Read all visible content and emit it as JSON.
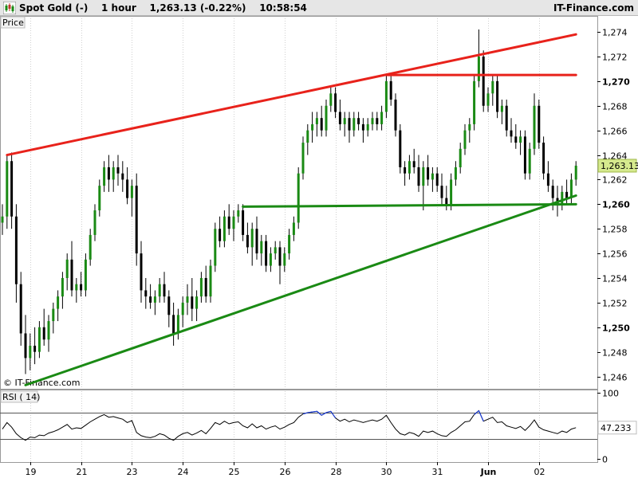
{
  "header": {
    "title": "Spot Gold (-)    1 hour    1,263.13 (-0.22%)    10:58:54",
    "brand": "IT-Finance.com",
    "logo_icon": "candlestick-logo-icon"
  },
  "price_panel": {
    "label": "Price",
    "watermark": "© IT-Finance.com",
    "current_price_label": "1,263.13",
    "y_ticks": [
      {
        "label": "1,274",
        "value": 1274,
        "bold": false
      },
      {
        "label": "1,272",
        "value": 1272,
        "bold": false
      },
      {
        "label": "1,270",
        "value": 1270,
        "bold": true
      },
      {
        "label": "1,268",
        "value": 1268,
        "bold": false
      },
      {
        "label": "1,266",
        "value": 1266,
        "bold": false
      },
      {
        "label": "1,264",
        "value": 1264,
        "bold": false
      },
      {
        "label": "1,262",
        "value": 1262,
        "bold": false
      },
      {
        "label": "1,260",
        "value": 1260,
        "bold": true
      },
      {
        "label": "1,258",
        "value": 1258,
        "bold": false
      },
      {
        "label": "1,256",
        "value": 1256,
        "bold": false
      },
      {
        "label": "1,254",
        "value": 1254,
        "bold": false
      },
      {
        "label": "1,252",
        "value": 1252,
        "bold": false
      },
      {
        "label": "1,250",
        "value": 1250,
        "bold": true
      },
      {
        "label": "1,248",
        "value": 1248,
        "bold": false
      },
      {
        "label": "1,246",
        "value": 1246,
        "bold": false
      }
    ]
  },
  "rsi_panel": {
    "label": "RSI ( 14)",
    "current_value_label": "47.233",
    "y_ticks": [
      {
        "label": "100",
        "value": 100
      },
      {
        "label": "0",
        "value": 0
      }
    ]
  },
  "x_axis": {
    "ticks": [
      {
        "label": "19",
        "bar": 6
      },
      {
        "label": "21",
        "bar": 17
      },
      {
        "label": "23",
        "bar": 28
      },
      {
        "label": "24",
        "bar": 39
      },
      {
        "label": "25",
        "bar": 50
      },
      {
        "label": "26",
        "bar": 61
      },
      {
        "label": "28",
        "bar": 72
      },
      {
        "label": "30",
        "bar": 83
      },
      {
        "label": "31",
        "bar": 94
      },
      {
        "label": "Jun",
        "bar": 105,
        "bold": true
      },
      {
        "label": "02",
        "bar": 116
      }
    ]
  },
  "chart_data": {
    "type": "candlestick",
    "price_range": [
      1245.0,
      1275.3
    ],
    "rsi_range": [
      -5,
      105
    ],
    "bar_count": 125,
    "candles": [
      [
        1258.5,
        1260.0,
        1257.5,
        1259.0
      ],
      [
        1259.0,
        1264.0,
        1258.0,
        1263.5
      ],
      [
        1263.5,
        1264.2,
        1258.0,
        1259.0
      ],
      [
        1259.0,
        1260.0,
        1252.0,
        1253.5
      ],
      [
        1253.5,
        1254.5,
        1248.5,
        1249.5
      ],
      [
        1249.5,
        1251.0,
        1246.2,
        1247.5
      ],
      [
        1247.5,
        1249.5,
        1246.5,
        1248.5
      ],
      [
        1248.5,
        1250.0,
        1247.0,
        1248.0
      ],
      [
        1248.0,
        1250.5,
        1247.5,
        1250.0
      ],
      [
        1250.0,
        1251.5,
        1248.5,
        1249.0
      ],
      [
        1249.0,
        1251.0,
        1248.0,
        1250.5
      ],
      [
        1250.5,
        1252.0,
        1249.5,
        1251.5
      ],
      [
        1251.5,
        1253.0,
        1250.5,
        1252.5
      ],
      [
        1252.5,
        1254.5,
        1251.5,
        1254.0
      ],
      [
        1254.0,
        1256.0,
        1253.0,
        1255.5
      ],
      [
        1255.5,
        1257.0,
        1252.5,
        1253.0
      ],
      [
        1253.0,
        1254.0,
        1252.0,
        1253.5
      ],
      [
        1253.5,
        1254.5,
        1252.5,
        1253.0
      ],
      [
        1253.0,
        1256.0,
        1252.5,
        1255.5
      ],
      [
        1255.5,
        1258.0,
        1255.0,
        1257.5
      ],
      [
        1257.5,
        1260.0,
        1257.0,
        1259.5
      ],
      [
        1259.5,
        1262.0,
        1259.0,
        1261.5
      ],
      [
        1261.5,
        1263.5,
        1261.0,
        1263.0
      ],
      [
        1263.0,
        1264.0,
        1261.0,
        1262.0
      ],
      [
        1262.0,
        1263.5,
        1261.0,
        1263.0
      ],
      [
        1263.0,
        1264.0,
        1261.5,
        1262.5
      ],
      [
        1262.5,
        1263.5,
        1261.0,
        1262.0
      ],
      [
        1262.0,
        1263.0,
        1260.0,
        1260.5
      ],
      [
        1260.5,
        1262.0,
        1259.0,
        1261.5
      ],
      [
        1261.5,
        1262.5,
        1255.0,
        1256.0
      ],
      [
        1256.0,
        1257.0,
        1252.0,
        1253.0
      ],
      [
        1253.0,
        1254.0,
        1251.5,
        1252.5
      ],
      [
        1252.5,
        1253.5,
        1251.5,
        1252.0
      ],
      [
        1252.0,
        1253.0,
        1251.0,
        1252.5
      ],
      [
        1252.5,
        1254.0,
        1252.0,
        1253.5
      ],
      [
        1253.5,
        1254.5,
        1252.0,
        1252.5
      ],
      [
        1252.5,
        1253.0,
        1250.0,
        1251.0
      ],
      [
        1251.0,
        1252.0,
        1248.5,
        1249.5
      ],
      [
        1249.5,
        1251.5,
        1249.0,
        1251.0
      ],
      [
        1251.0,
        1252.5,
        1250.0,
        1252.0
      ],
      [
        1252.0,
        1253.5,
        1251.0,
        1252.5
      ],
      [
        1252.5,
        1254.0,
        1250.5,
        1251.5
      ],
      [
        1251.5,
        1253.0,
        1250.5,
        1252.5
      ],
      [
        1252.5,
        1254.5,
        1252.0,
        1254.0
      ],
      [
        1254.0,
        1255.0,
        1252.0,
        1252.5
      ],
      [
        1252.5,
        1255.5,
        1252.0,
        1255.0
      ],
      [
        1255.0,
        1258.5,
        1254.5,
        1258.0
      ],
      [
        1258.0,
        1259.0,
        1256.5,
        1257.0
      ],
      [
        1257.0,
        1259.5,
        1256.5,
        1259.0
      ],
      [
        1259.0,
        1260.0,
        1257.5,
        1258.0
      ],
      [
        1258.0,
        1259.5,
        1257.0,
        1259.0
      ],
      [
        1259.0,
        1260.0,
        1258.5,
        1259.5
      ],
      [
        1259.5,
        1260.0,
        1257.0,
        1257.5
      ],
      [
        1257.5,
        1258.5,
        1256.0,
        1256.5
      ],
      [
        1256.5,
        1258.5,
        1255.0,
        1258.0
      ],
      [
        1258.0,
        1259.0,
        1255.5,
        1256.0
      ],
      [
        1256.0,
        1257.5,
        1255.0,
        1257.0
      ],
      [
        1257.0,
        1257.5,
        1254.5,
        1255.0
      ],
      [
        1255.0,
        1256.5,
        1254.5,
        1256.0
      ],
      [
        1256.0,
        1257.0,
        1255.5,
        1256.5
      ],
      [
        1256.5,
        1257.0,
        1253.5,
        1255.0
      ],
      [
        1255.0,
        1256.5,
        1254.5,
        1256.0
      ],
      [
        1256.0,
        1258.0,
        1255.5,
        1257.5
      ],
      [
        1257.5,
        1259.0,
        1257.0,
        1258.5
      ],
      [
        1258.5,
        1263.0,
        1258.0,
        1262.5
      ],
      [
        1262.5,
        1265.5,
        1262.0,
        1265.0
      ],
      [
        1265.0,
        1266.5,
        1264.0,
        1266.0
      ],
      [
        1266.0,
        1267.5,
        1265.0,
        1266.5
      ],
      [
        1266.5,
        1267.5,
        1265.5,
        1267.0
      ],
      [
        1267.0,
        1268.0,
        1265.5,
        1266.0
      ],
      [
        1266.0,
        1268.5,
        1265.5,
        1268.0
      ],
      [
        1268.0,
        1269.5,
        1267.5,
        1269.0
      ],
      [
        1269.0,
        1269.5,
        1267.0,
        1267.5
      ],
      [
        1267.5,
        1268.5,
        1266.0,
        1266.5
      ],
      [
        1266.5,
        1267.5,
        1265.5,
        1267.0
      ],
      [
        1267.0,
        1267.5,
        1265.0,
        1266.0
      ],
      [
        1266.0,
        1267.5,
        1265.5,
        1267.0
      ],
      [
        1267.0,
        1267.5,
        1266.0,
        1266.5
      ],
      [
        1266.5,
        1267.0,
        1265.0,
        1266.0
      ],
      [
        1266.0,
        1267.0,
        1265.5,
        1266.5
      ],
      [
        1266.5,
        1267.5,
        1266.0,
        1267.0
      ],
      [
        1267.0,
        1267.5,
        1266.0,
        1266.5
      ],
      [
        1266.5,
        1268.0,
        1266.0,
        1267.5
      ],
      [
        1267.5,
        1270.5,
        1267.0,
        1270.0
      ],
      [
        1270.0,
        1270.5,
        1268.0,
        1268.5
      ],
      [
        1268.5,
        1269.0,
        1265.5,
        1266.0
      ],
      [
        1266.0,
        1266.5,
        1262.5,
        1263.0
      ],
      [
        1263.0,
        1263.5,
        1261.5,
        1262.5
      ],
      [
        1262.5,
        1264.0,
        1262.0,
        1263.5
      ],
      [
        1263.5,
        1264.5,
        1262.5,
        1263.0
      ],
      [
        1263.0,
        1264.0,
        1261.0,
        1261.5
      ],
      [
        1261.5,
        1263.5,
        1259.5,
        1263.0
      ],
      [
        1263.0,
        1264.0,
        1261.5,
        1262.0
      ],
      [
        1262.0,
        1263.0,
        1261.0,
        1262.5
      ],
      [
        1262.5,
        1263.0,
        1261.0,
        1261.5
      ],
      [
        1261.5,
        1262.5,
        1260.0,
        1260.5
      ],
      [
        1260.5,
        1261.5,
        1259.5,
        1260.0
      ],
      [
        1260.0,
        1262.5,
        1259.5,
        1262.0
      ],
      [
        1262.0,
        1263.5,
        1261.5,
        1263.0
      ],
      [
        1263.0,
        1265.0,
        1262.5,
        1264.5
      ],
      [
        1264.5,
        1266.5,
        1264.0,
        1266.0
      ],
      [
        1266.0,
        1267.0,
        1265.0,
        1266.5
      ],
      [
        1266.5,
        1270.5,
        1266.0,
        1270.0
      ],
      [
        1270.0,
        1274.2,
        1269.5,
        1272.0
      ],
      [
        1272.0,
        1272.5,
        1267.5,
        1268.0
      ],
      [
        1268.0,
        1269.5,
        1267.5,
        1269.0
      ],
      [
        1269.0,
        1270.5,
        1268.0,
        1270.0
      ],
      [
        1270.0,
        1270.5,
        1267.0,
        1267.5
      ],
      [
        1267.5,
        1268.5,
        1266.5,
        1268.0
      ],
      [
        1268.0,
        1268.5,
        1265.5,
        1266.0
      ],
      [
        1266.0,
        1267.0,
        1265.0,
        1265.5
      ],
      [
        1265.5,
        1266.5,
        1264.5,
        1265.0
      ],
      [
        1265.0,
        1266.0,
        1264.0,
        1265.5
      ],
      [
        1265.5,
        1266.0,
        1262.0,
        1262.5
      ],
      [
        1262.5,
        1265.0,
        1262.0,
        1264.5
      ],
      [
        1264.5,
        1269.0,
        1264.0,
        1268.0
      ],
      [
        1268.0,
        1268.5,
        1264.5,
        1265.0
      ],
      [
        1265.0,
        1265.5,
        1262.0,
        1262.5
      ],
      [
        1262.5,
        1263.5,
        1261.0,
        1261.5
      ],
      [
        1261.5,
        1262.0,
        1259.5,
        1260.5
      ],
      [
        1260.5,
        1261.5,
        1259.0,
        1260.0
      ],
      [
        1260.0,
        1261.5,
        1259.5,
        1261.0
      ],
      [
        1261.0,
        1262.0,
        1260.0,
        1260.5
      ],
      [
        1260.5,
        1262.5,
        1260.0,
        1262.0
      ],
      [
        1262.0,
        1263.5,
        1261.5,
        1263.13
      ]
    ],
    "rsi": [
      45,
      55,
      48,
      38,
      32,
      28,
      33,
      32,
      36,
      35,
      39,
      41,
      44,
      48,
      52,
      45,
      47,
      46,
      51,
      56,
      60,
      64,
      67,
      63,
      64,
      62,
      60,
      55,
      58,
      40,
      35,
      33,
      32,
      34,
      38,
      36,
      31,
      28,
      34,
      38,
      40,
      36,
      39,
      43,
      38,
      46,
      55,
      52,
      57,
      53,
      55,
      56,
      50,
      47,
      53,
      47,
      50,
      45,
      48,
      50,
      45,
      48,
      52,
      55,
      63,
      68,
      70,
      71,
      72,
      66,
      70,
      72,
      62,
      57,
      60,
      56,
      59,
      57,
      55,
      57,
      59,
      57,
      60,
      66,
      55,
      45,
      38,
      36,
      40,
      38,
      34,
      42,
      40,
      42,
      38,
      35,
      34,
      40,
      44,
      50,
      56,
      57,
      67,
      73,
      57,
      60,
      63,
      55,
      56,
      50,
      48,
      46,
      49,
      43,
      50,
      59,
      48,
      44,
      42,
      40,
      38,
      42,
      40,
      45,
      47.233
    ],
    "trendlines": [
      {
        "color": "#e8221b",
        "from": [
          1,
          1264.0
        ],
        "to": [
          124,
          1273.8
        ]
      },
      {
        "color": "#e8221b",
        "from": [
          83,
          1270.5
        ],
        "to": [
          124,
          1270.5
        ]
      },
      {
        "color": "#1a8a14",
        "from": [
          5,
          1245.3
        ],
        "to": [
          124,
          1260.7
        ]
      },
      {
        "color": "#1a8a14",
        "from": [
          52,
          1259.8
        ],
        "to": [
          124,
          1260.0
        ]
      }
    ],
    "rsi_levels": [
      70,
      30
    ],
    "colors": {
      "up": "#1a8a14",
      "down": "#000000",
      "wick": "#000000",
      "last_price_bg": "#d6ea8e",
      "rsi_line": "#000000",
      "rsi_overbought": "#1a3cd6"
    }
  }
}
